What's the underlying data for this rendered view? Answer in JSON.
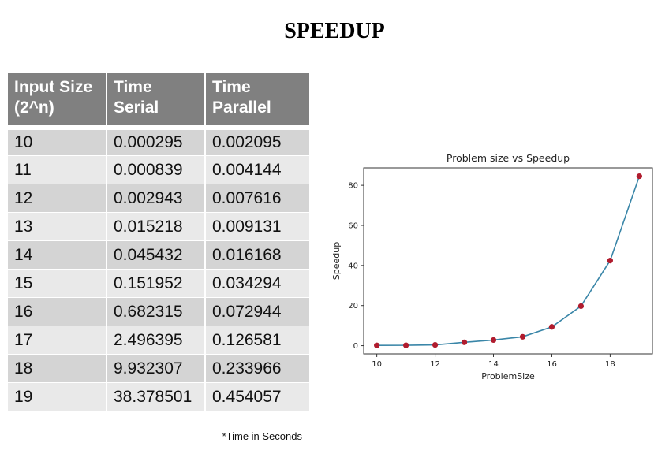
{
  "page_title": "SPEEDUP",
  "table": {
    "headers": [
      "Input Size (2^n)",
      "Time Serial",
      "Time Parallel"
    ],
    "rows": [
      [
        "10",
        "0.000295",
        "0.002095"
      ],
      [
        "11",
        "0.000839",
        "0.004144"
      ],
      [
        "12",
        "0.002943",
        "0.007616"
      ],
      [
        "13",
        "0.015218",
        "0.009131"
      ],
      [
        "14",
        "0.045432",
        "0.016168"
      ],
      [
        "15",
        "0.151952",
        "0.034294"
      ],
      [
        "16",
        "0.682315",
        "0.072944"
      ],
      [
        "17",
        "2.496395",
        "0.126581"
      ],
      [
        "18",
        "9.932307",
        "0.233966"
      ],
      [
        "19",
        "38.378501",
        "0.454057"
      ]
    ]
  },
  "note": "*Time in Seconds",
  "chart_data": {
    "type": "line",
    "title": "Problem size vs Speedup",
    "xlabel": "ProblemSize",
    "ylabel": "Speedup",
    "x": [
      10,
      11,
      12,
      13,
      14,
      15,
      16,
      17,
      18,
      19
    ],
    "y": [
      0.141,
      0.202,
      0.386,
      1.667,
      2.81,
      4.431,
      9.354,
      19.722,
      42.452,
      84.524
    ],
    "xlim": [
      9.55,
      19.45
    ],
    "ylim": [
      -4.1,
      88.7
    ],
    "xticks": [
      10,
      12,
      14,
      16,
      18
    ],
    "yticks": [
      0,
      20,
      40,
      60,
      80
    ],
    "line_color": "#3a86a8",
    "marker_color": "#b01c2e",
    "grid": false
  }
}
